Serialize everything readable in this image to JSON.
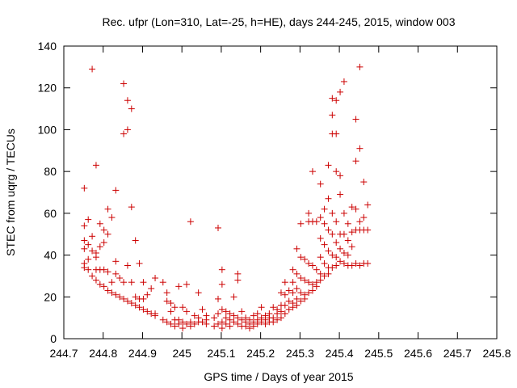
{
  "chart_data": {
    "type": "scatter",
    "title": "Rec. ufpr (Lon=310, Lat=-25, h=HE), days 244-245, 2015, window 003",
    "xlabel": "GPS time / Days of year 2015",
    "ylabel": "STEC from uqrg / TECUs",
    "xlim": [
      244.7,
      245.8
    ],
    "ylim": [
      0,
      140
    ],
    "x_ticks": [
      244.7,
      244.8,
      244.9,
      245,
      245.1,
      245.2,
      245.3,
      245.4,
      245.5,
      245.6,
      245.7,
      245.8
    ],
    "x_tick_labels": [
      "244.7",
      "244.8",
      "244.9",
      "245",
      "245.1",
      "245.2",
      "245.3",
      "245.4",
      "245.5",
      "245.6",
      "245.7",
      "245.8"
    ],
    "y_ticks": [
      0,
      20,
      40,
      60,
      80,
      100,
      120,
      140
    ],
    "y_tick_labels": [
      "0",
      "20",
      "40",
      "60",
      "80",
      "100",
      "120",
      "140"
    ],
    "grid": false,
    "marker": "+",
    "marker_color": "#cc0000",
    "series": [
      {
        "name": "STEC",
        "points": [
          [
            244.752,
            72
          ],
          [
            244.752,
            54
          ],
          [
            244.752,
            47
          ],
          [
            244.752,
            43
          ],
          [
            244.752,
            36
          ],
          [
            244.752,
            34
          ],
          [
            244.762,
            57
          ],
          [
            244.762,
            45
          ],
          [
            244.762,
            38
          ],
          [
            244.762,
            33
          ],
          [
            244.772,
            129
          ],
          [
            244.772,
            49
          ],
          [
            244.772,
            42
          ],
          [
            244.772,
            30
          ],
          [
            244.782,
            83
          ],
          [
            244.782,
            41
          ],
          [
            244.782,
            39
          ],
          [
            244.782,
            33
          ],
          [
            244.782,
            28
          ],
          [
            244.792,
            55
          ],
          [
            244.792,
            44
          ],
          [
            244.792,
            33
          ],
          [
            244.792,
            26
          ],
          [
            244.802,
            52
          ],
          [
            244.802,
            46
          ],
          [
            244.802,
            33
          ],
          [
            244.802,
            25
          ],
          [
            244.812,
            62
          ],
          [
            244.812,
            50
          ],
          [
            244.812,
            32
          ],
          [
            244.812,
            23
          ],
          [
            244.822,
            58
          ],
          [
            244.822,
            27
          ],
          [
            244.822,
            22
          ],
          [
            244.832,
            71
          ],
          [
            244.832,
            37
          ],
          [
            244.832,
            31
          ],
          [
            244.832,
            21
          ],
          [
            244.842,
            29
          ],
          [
            244.842,
            20
          ],
          [
            244.852,
            122
          ],
          [
            244.852,
            98
          ],
          [
            244.852,
            27
          ],
          [
            244.852,
            19
          ],
          [
            244.862,
            114
          ],
          [
            244.862,
            100
          ],
          [
            244.862,
            35
          ],
          [
            244.862,
            18
          ],
          [
            244.872,
            110
          ],
          [
            244.872,
            63
          ],
          [
            244.872,
            27
          ],
          [
            244.872,
            17
          ],
          [
            244.882,
            47
          ],
          [
            244.882,
            20
          ],
          [
            244.882,
            16
          ],
          [
            244.892,
            36
          ],
          [
            244.892,
            19
          ],
          [
            244.892,
            15
          ],
          [
            244.902,
            27
          ],
          [
            244.902,
            19
          ],
          [
            244.902,
            14
          ],
          [
            244.912,
            21
          ],
          [
            244.912,
            13
          ],
          [
            244.922,
            24
          ],
          [
            244.922,
            12
          ],
          [
            244.932,
            29
          ],
          [
            244.932,
            12
          ],
          [
            244.932,
            11
          ],
          [
            244.952,
            27
          ],
          [
            244.952,
            9
          ],
          [
            244.962,
            22
          ],
          [
            244.962,
            18
          ],
          [
            244.962,
            8
          ],
          [
            244.972,
            17
          ],
          [
            244.972,
            13
          ],
          [
            244.972,
            7
          ],
          [
            244.982,
            15
          ],
          [
            244.982,
            9
          ],
          [
            244.982,
            6
          ],
          [
            244.992,
            25
          ],
          [
            244.992,
            9
          ],
          [
            244.992,
            7
          ],
          [
            245.002,
            15
          ],
          [
            245.002,
            8
          ],
          [
            245.002,
            5
          ],
          [
            245.012,
            26
          ],
          [
            245.012,
            13
          ],
          [
            245.012,
            7
          ],
          [
            245.022,
            56
          ],
          [
            245.022,
            8
          ],
          [
            245.022,
            6
          ],
          [
            245.032,
            11
          ],
          [
            245.032,
            7
          ],
          [
            245.042,
            22
          ],
          [
            245.042,
            10
          ],
          [
            245.042,
            8
          ],
          [
            245.052,
            14
          ],
          [
            245.052,
            8
          ],
          [
            245.062,
            11
          ],
          [
            245.062,
            9
          ],
          [
            245.062,
            7
          ],
          [
            245.082,
            10
          ],
          [
            245.082,
            6
          ],
          [
            245.092,
            53
          ],
          [
            245.092,
            19
          ],
          [
            245.092,
            12
          ],
          [
            245.092,
            7
          ],
          [
            245.102,
            33
          ],
          [
            245.102,
            26
          ],
          [
            245.102,
            14
          ],
          [
            245.102,
            8
          ],
          [
            245.102,
            5
          ],
          [
            245.112,
            13
          ],
          [
            245.112,
            10
          ],
          [
            245.112,
            7
          ],
          [
            245.122,
            12
          ],
          [
            245.122,
            9
          ],
          [
            245.122,
            6
          ],
          [
            245.132,
            20
          ],
          [
            245.132,
            11
          ],
          [
            245.132,
            8
          ],
          [
            245.142,
            31
          ],
          [
            245.142,
            28
          ],
          [
            245.142,
            10
          ],
          [
            245.142,
            7
          ],
          [
            245.152,
            13
          ],
          [
            245.152,
            9
          ],
          [
            245.152,
            6
          ],
          [
            245.162,
            10
          ],
          [
            245.162,
            8
          ],
          [
            245.162,
            6
          ],
          [
            245.172,
            9
          ],
          [
            245.172,
            7
          ],
          [
            245.172,
            5
          ],
          [
            245.182,
            11
          ],
          [
            245.182,
            8
          ],
          [
            245.182,
            6
          ],
          [
            245.192,
            12
          ],
          [
            245.192,
            9
          ],
          [
            245.192,
            7
          ],
          [
            245.202,
            15
          ],
          [
            245.202,
            10
          ],
          [
            245.202,
            8
          ],
          [
            245.212,
            11
          ],
          [
            245.212,
            9
          ],
          [
            245.212,
            7
          ],
          [
            245.222,
            12
          ],
          [
            245.222,
            10
          ],
          [
            245.222,
            8
          ],
          [
            245.232,
            15
          ],
          [
            245.232,
            10
          ],
          [
            245.232,
            8
          ],
          [
            245.242,
            14
          ],
          [
            245.242,
            12
          ],
          [
            245.242,
            9
          ],
          [
            245.252,
            22
          ],
          [
            245.252,
            16
          ],
          [
            245.252,
            13
          ],
          [
            245.252,
            10
          ],
          [
            245.262,
            27
          ],
          [
            245.262,
            21
          ],
          [
            245.262,
            16
          ],
          [
            245.262,
            12
          ],
          [
            245.272,
            23
          ],
          [
            245.272,
            18
          ],
          [
            245.272,
            14
          ],
          [
            245.282,
            33
          ],
          [
            245.282,
            27
          ],
          [
            245.282,
            22
          ],
          [
            245.282,
            17
          ],
          [
            245.282,
            15
          ],
          [
            245.292,
            43
          ],
          [
            245.292,
            31
          ],
          [
            245.292,
            24
          ],
          [
            245.292,
            19
          ],
          [
            245.292,
            16
          ],
          [
            245.302,
            55
          ],
          [
            245.302,
            39
          ],
          [
            245.302,
            29
          ],
          [
            245.302,
            22
          ],
          [
            245.302,
            18
          ],
          [
            245.312,
            38
          ],
          [
            245.312,
            28
          ],
          [
            245.312,
            21
          ],
          [
            245.312,
            19
          ],
          [
            245.322,
            60
          ],
          [
            245.322,
            56
          ],
          [
            245.322,
            36
          ],
          [
            245.322,
            27
          ],
          [
            245.322,
            22
          ],
          [
            245.332,
            80
          ],
          [
            245.332,
            56
          ],
          [
            245.332,
            35
          ],
          [
            245.332,
            26
          ],
          [
            245.332,
            23
          ],
          [
            245.342,
            56
          ],
          [
            245.342,
            33
          ],
          [
            245.342,
            27
          ],
          [
            245.342,
            25
          ],
          [
            245.352,
            74
          ],
          [
            245.352,
            58
          ],
          [
            245.352,
            48
          ],
          [
            245.352,
            39
          ],
          [
            245.352,
            31
          ],
          [
            245.352,
            28
          ],
          [
            245.362,
            62
          ],
          [
            245.362,
            55
          ],
          [
            245.362,
            45
          ],
          [
            245.362,
            36
          ],
          [
            245.362,
            30
          ],
          [
            245.372,
            83
          ],
          [
            245.372,
            67
          ],
          [
            245.372,
            52
          ],
          [
            245.372,
            42
          ],
          [
            245.372,
            34
          ],
          [
            245.372,
            31
          ],
          [
            245.382,
            115
          ],
          [
            245.382,
            107
          ],
          [
            245.382,
            98
          ],
          [
            245.382,
            60
          ],
          [
            245.382,
            50
          ],
          [
            245.382,
            40
          ],
          [
            245.382,
            34
          ],
          [
            245.392,
            114
          ],
          [
            245.392,
            98
          ],
          [
            245.392,
            80
          ],
          [
            245.392,
            56
          ],
          [
            245.392,
            46
          ],
          [
            245.392,
            39
          ],
          [
            245.392,
            35
          ],
          [
            245.402,
            118
          ],
          [
            245.402,
            78
          ],
          [
            245.402,
            69
          ],
          [
            245.402,
            50
          ],
          [
            245.402,
            43
          ],
          [
            245.402,
            37
          ],
          [
            245.412,
            123
          ],
          [
            245.412,
            60
          ],
          [
            245.412,
            50
          ],
          [
            245.412,
            41
          ],
          [
            245.412,
            36
          ],
          [
            245.422,
            55
          ],
          [
            245.422,
            47
          ],
          [
            245.422,
            40
          ],
          [
            245.422,
            35
          ],
          [
            245.432,
            63
          ],
          [
            245.432,
            51
          ],
          [
            245.432,
            44
          ],
          [
            245.432,
            35
          ],
          [
            245.442,
            105
          ],
          [
            245.442,
            85
          ],
          [
            245.442,
            62
          ],
          [
            245.442,
            52
          ],
          [
            245.442,
            36
          ],
          [
            245.452,
            130
          ],
          [
            245.452,
            91
          ],
          [
            245.452,
            56
          ],
          [
            245.452,
            52
          ],
          [
            245.452,
            35
          ],
          [
            245.462,
            75
          ],
          [
            245.462,
            58
          ],
          [
            245.462,
            52
          ],
          [
            245.462,
            36
          ],
          [
            245.472,
            64
          ],
          [
            245.472,
            52
          ],
          [
            245.472,
            36
          ]
        ]
      }
    ]
  }
}
